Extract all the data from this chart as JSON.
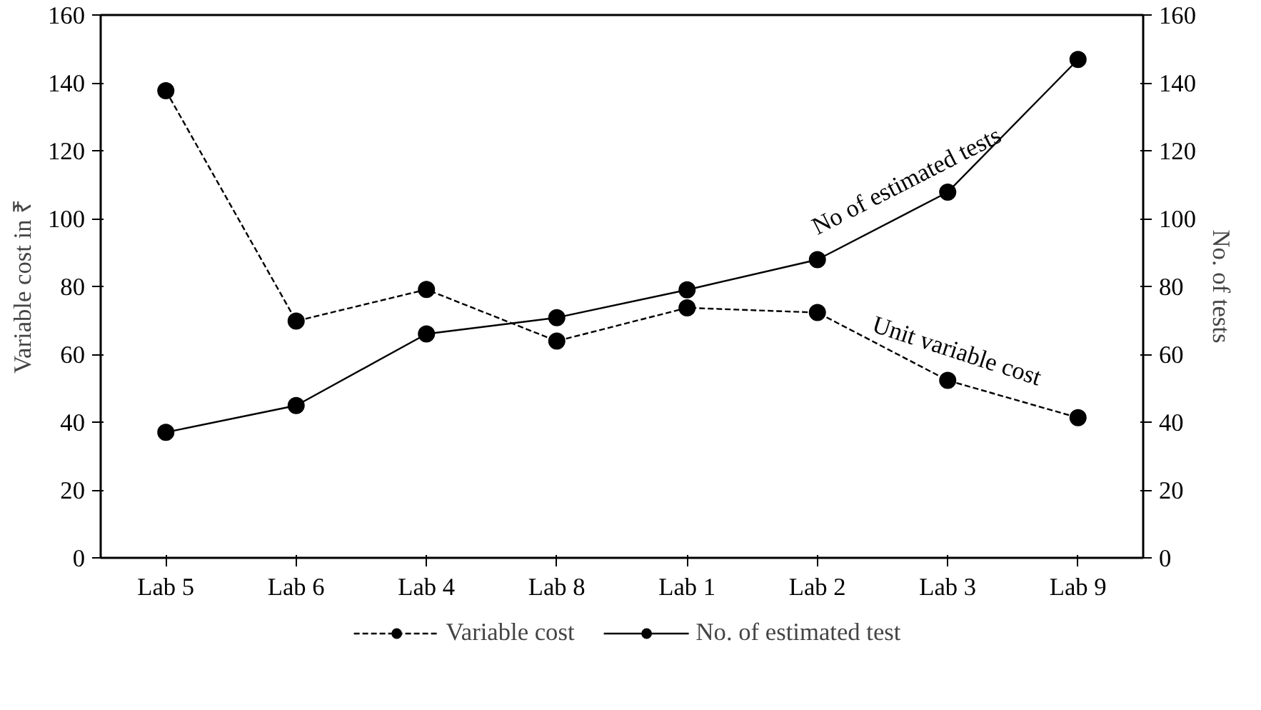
{
  "chart_data": {
    "type": "line",
    "ylabel": "Variable cost in ₹",
    "y2label": "No. of tests",
    "categories": [
      "Lab 5",
      "Lab 6",
      "Lab 4",
      "Lab 8",
      "Lab 1",
      "Lab 2",
      "Lab 3",
      "Lab 9"
    ],
    "ylim": [
      0,
      160
    ],
    "yticks": [
      0,
      20,
      40,
      60,
      80,
      100,
      120,
      140,
      160
    ],
    "y2lim": [
      0,
      160
    ],
    "y2ticks": [
      0,
      20,
      40,
      60,
      80,
      100,
      120,
      140,
      160
    ],
    "series": [
      {
        "name": "Variable cost",
        "color": "#000000",
        "line_style": "dashed",
        "values": [
          137.7,
          69.8,
          79.1,
          63.9,
          73.7,
          72.3,
          52.3,
          41.3
        ]
      },
      {
        "name": "No. of estimated test",
        "color": "#000000",
        "line_style": "solid",
        "axis": "y2",
        "values": [
          37,
          44.9,
          66,
          70.8,
          79,
          87.9,
          107.8,
          146.9
        ]
      }
    ],
    "marker": "circle",
    "grid": false,
    "legend": "bottom",
    "annotations": [
      "No of estimated tests",
      "Unit variable cost"
    ]
  }
}
